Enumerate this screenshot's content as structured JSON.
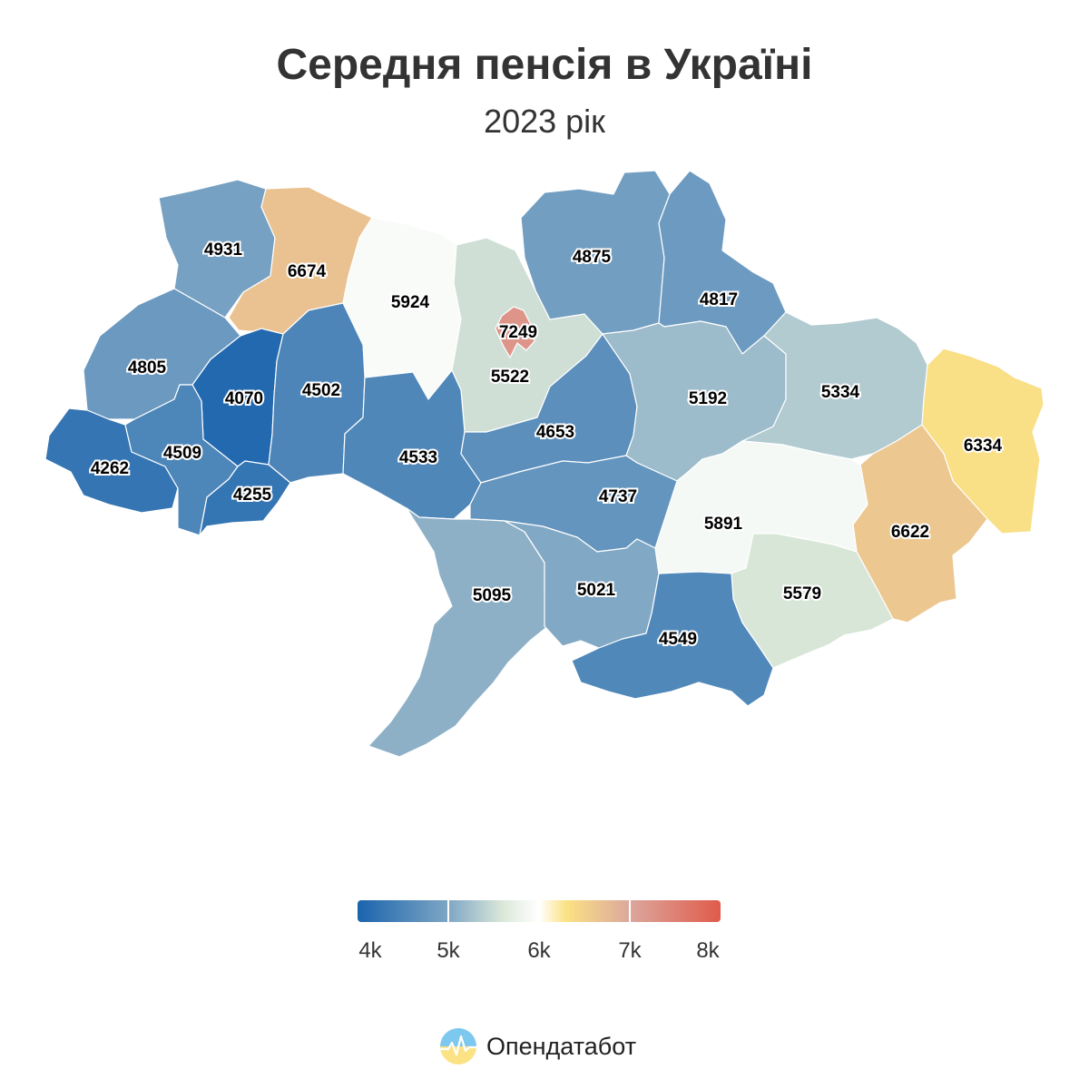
{
  "title": "Середня пенсія в Україні",
  "subtitle": "2023 рік",
  "legend": {
    "ticks": [
      "4k",
      "5k",
      "6k",
      "7k",
      "8k"
    ],
    "tick_values": [
      4000,
      5000,
      6000,
      7000,
      8000
    ],
    "min": 4000,
    "max": 8000,
    "color_stops": [
      {
        "value": 4000,
        "color": "#1b64ad"
      },
      {
        "value": 5000,
        "color": "#7ea6c4"
      },
      {
        "value": 5600,
        "color": "#dbe8d9"
      },
      {
        "value": 6000,
        "color": "#ffffff"
      },
      {
        "value": 6300,
        "color": "#fbe284"
      },
      {
        "value": 7000,
        "color": "#dca79d"
      },
      {
        "value": 8000,
        "color": "#e05b4b"
      }
    ]
  },
  "chart_data": {
    "type": "choropleth",
    "title": "Середня пенсія в Україні",
    "subtitle": "2023 рік",
    "regions": [
      {
        "id": "volyn",
        "value": 4931
      },
      {
        "id": "rivne",
        "value": 6674
      },
      {
        "id": "zhytomyr",
        "value": 5924
      },
      {
        "id": "kyiv-oblast",
        "value": 5522
      },
      {
        "id": "kyiv-city",
        "value": 7249
      },
      {
        "id": "chernihiv",
        "value": 4875
      },
      {
        "id": "sumy",
        "value": 4817
      },
      {
        "id": "lviv",
        "value": 4805
      },
      {
        "id": "ternopil",
        "value": 4070
      },
      {
        "id": "khmelnytskyi",
        "value": 4502
      },
      {
        "id": "zakarpattia",
        "value": 4262
      },
      {
        "id": "ivano-frankivsk",
        "value": 4509
      },
      {
        "id": "chernivtsi",
        "value": 4255
      },
      {
        "id": "vinnytsia",
        "value": 4533
      },
      {
        "id": "cherkasy",
        "value": 4653
      },
      {
        "id": "poltava",
        "value": 5192
      },
      {
        "id": "kharkiv",
        "value": 5334
      },
      {
        "id": "luhansk",
        "value": 6334
      },
      {
        "id": "donetsk",
        "value": 6622
      },
      {
        "id": "dnipropetrovsk",
        "value": 5891
      },
      {
        "id": "zaporizhzhia",
        "value": 5579
      },
      {
        "id": "kirovohrad",
        "value": 4737
      },
      {
        "id": "odesa",
        "value": 5095
      },
      {
        "id": "mykolaiv",
        "value": 5021
      },
      {
        "id": "kherson",
        "value": 4549
      },
      {
        "id": "crimea",
        "value": null
      }
    ]
  },
  "brand": {
    "name": "Опендатабот"
  },
  "colors": {
    "no_data_fill": "#ffffff",
    "no_data_stroke": "#b5d3b5",
    "border": "#ffffff"
  }
}
